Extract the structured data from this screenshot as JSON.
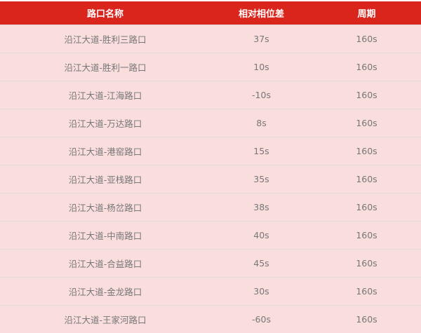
{
  "colors": {
    "header_bg": "#da251d",
    "row_bg": "#fadddd"
  },
  "headers": [
    "路口名称",
    "相对相位差",
    "周期"
  ],
  "rows": [
    [
      "沿江大道-胜利三路口",
      "37s",
      "160s"
    ],
    [
      "沿江大道-胜利一路口",
      "10s",
      "160s"
    ],
    [
      "沿江大道-江海路口",
      "-10s",
      "160s"
    ],
    [
      "沿江大道-万达路口",
      "8s",
      "160s"
    ],
    [
      "沿江大道-港窑路口",
      "15s",
      "160s"
    ],
    [
      "沿江大道-亚栈路口",
      "35s",
      "160s"
    ],
    [
      "沿江大道-杨岔路口",
      "38s",
      "160s"
    ],
    [
      "沿江大道-中南路口",
      "40s",
      "160s"
    ],
    [
      "沿江大道-合益路口",
      "45s",
      "160s"
    ],
    [
      "沿江大道-金龙路口",
      "30s",
      "160s"
    ],
    [
      "沿江大道-王家河路口",
      "-60s",
      "160s"
    ]
  ]
}
